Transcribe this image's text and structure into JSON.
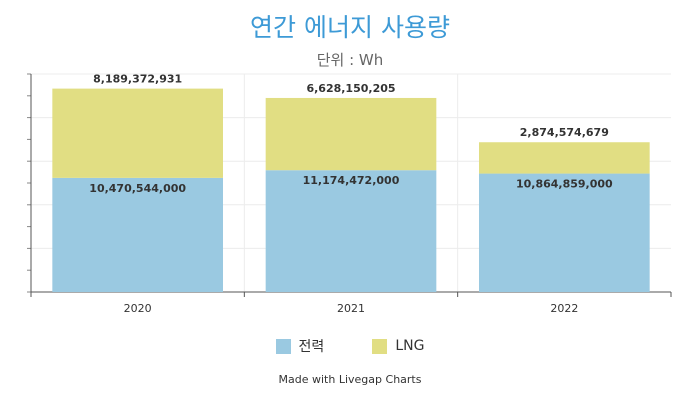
{
  "chart_data": {
    "type": "bar",
    "stacked": true,
    "title": "연간 에너지 사용량",
    "subtitle": "단위 : Wh",
    "categories": [
      "2020",
      "2021",
      "2022"
    ],
    "series": [
      {
        "name": "전력",
        "color": "#9ac9e1",
        "values": [
          10470544000,
          11174472000,
          10864859000
        ],
        "labels": [
          "10,470,544,000",
          "11,174,472,000",
          "10,864,859,000"
        ]
      },
      {
        "name": "LNG",
        "color": "#e1de83",
        "values": [
          8189372931,
          6628150205,
          2874574679
        ],
        "labels": [
          "8,189,372,931",
          "6,628,150,205",
          "2,874,574,679"
        ]
      }
    ],
    "ylim": [
      0,
      20000000000
    ],
    "grid": true,
    "legend": "bottom"
  },
  "credit": "Made with Livegap Charts"
}
